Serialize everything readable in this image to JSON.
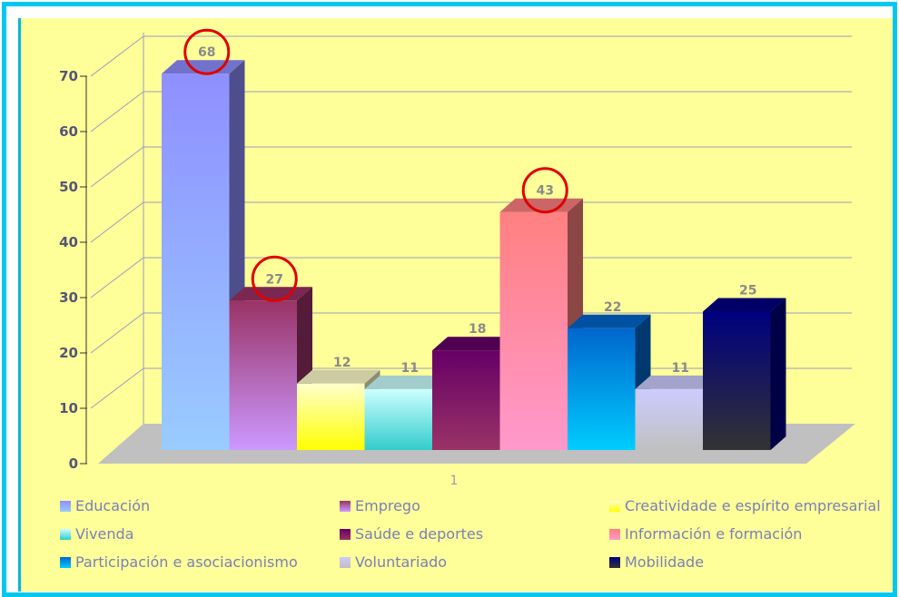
{
  "chart_data": {
    "type": "bar",
    "categories": [
      "1"
    ],
    "ylim": [
      0,
      70
    ],
    "yticks": [
      0,
      10,
      20,
      30,
      40,
      50,
      60,
      70
    ],
    "grid": true,
    "legend_position": "bottom",
    "highlighted_series": [
      "Educación",
      "Emprego",
      "Información e formación"
    ],
    "series": [
      {
        "name": "Educación",
        "values": [
          68
        ],
        "color_top": "#8f8fff",
        "color_bottom": "#99ccff",
        "highlighted": true
      },
      {
        "name": "Emprego",
        "values": [
          27
        ],
        "color_top": "#993366",
        "color_bottom": "#cc99ff",
        "highlighted": true
      },
      {
        "name": "Creatividade e espírito empresarial",
        "values": [
          12
        ],
        "color_top": "#ffffcc",
        "color_bottom": "#ffff00",
        "highlighted": false
      },
      {
        "name": "Vivenda",
        "values": [
          11
        ],
        "color_top": "#ccffff",
        "color_bottom": "#33cccc",
        "highlighted": false
      },
      {
        "name": "Saúde e deportes",
        "values": [
          18
        ],
        "color_top": "#660066",
        "color_bottom": "#993366",
        "highlighted": false
      },
      {
        "name": "Información e formación",
        "values": [
          43
        ],
        "color_top": "#ff8080",
        "color_bottom": "#ff99cc",
        "highlighted": true
      },
      {
        "name": "Participación e asociacionismo",
        "values": [
          22
        ],
        "color_top": "#0066cc",
        "color_bottom": "#00ccff",
        "highlighted": false
      },
      {
        "name": "Voluntariado",
        "values": [
          11
        ],
        "color_top": "#ccccff",
        "color_bottom": "#c0c0c0",
        "highlighted": false
      },
      {
        "name": "Mobilidade",
        "values": [
          25
        ],
        "color_top": "#000080",
        "color_bottom": "#333333",
        "highlighted": false
      }
    ]
  },
  "colors": {
    "frame_border": "#00c8f0",
    "panel_background": "#ffff99",
    "floor": "#c0c0c0",
    "gridline": "#9b9bc0",
    "highlight_circle": "#e00000"
  }
}
